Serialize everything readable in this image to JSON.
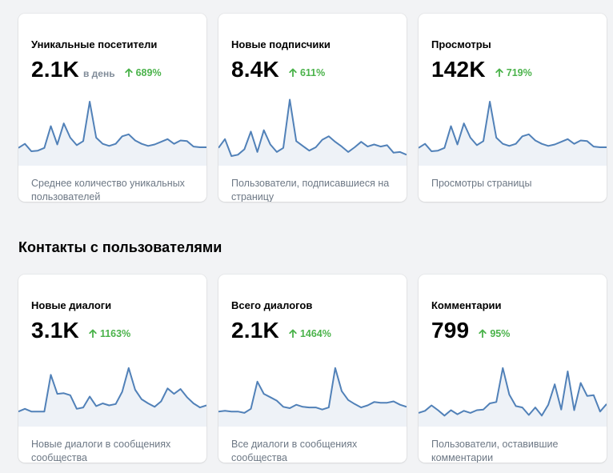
{
  "colors": {
    "line": "#5181b8",
    "area": "#eef2f7",
    "positive": "#4bb34b",
    "muted": "#818c99"
  },
  "section": {
    "title": "Контакты с пользователями"
  },
  "cards": [
    {
      "title": "Уникальные посетители",
      "value": "2.1K",
      "unit": "в день",
      "delta": "689%",
      "desc": "Среднее количество уникальных пользователей",
      "series": [
        12,
        18,
        7,
        8,
        12,
        44,
        17,
        48,
        27,
        16,
        22,
        80,
        27,
        18,
        15,
        18,
        29,
        32,
        23,
        18,
        15,
        17,
        21,
        25,
        18,
        23,
        22,
        14,
        13,
        13
      ]
    },
    {
      "title": "Новые подписчики",
      "value": "8.4K",
      "unit": "",
      "delta": "611%",
      "desc": "Пользователи, подписавшиеся на страницу",
      "series": [
        12,
        25,
        0,
        2,
        10,
        36,
        6,
        38,
        17,
        6,
        12,
        83,
        22,
        15,
        8,
        13,
        24,
        29,
        21,
        14,
        6,
        13,
        21,
        14,
        17,
        14,
        16,
        5,
        6,
        2
      ]
    },
    {
      "title": "Просмотры",
      "value": "142K",
      "unit": "",
      "delta": "719%",
      "desc": "Просмотры страницы",
      "series": [
        12,
        18,
        7,
        8,
        12,
        44,
        17,
        48,
        27,
        16,
        22,
        80,
        27,
        18,
        15,
        18,
        29,
        32,
        23,
        18,
        15,
        17,
        21,
        25,
        18,
        23,
        22,
        14,
        13,
        13
      ]
    },
    {
      "title": "Новые диалоги",
      "value": "3.1K",
      "unit": "",
      "delta": "1163%",
      "desc": "Новые диалоги в сообщениях сообщества",
      "series": [
        8,
        12,
        8,
        8,
        8,
        62,
        34,
        35,
        32,
        12,
        14,
        30,
        16,
        20,
        17,
        19,
        37,
        72,
        40,
        26,
        20,
        15,
        23,
        42,
        34,
        41,
        29,
        20,
        14,
        17
      ]
    },
    {
      "title": "Всего диалогов",
      "value": "2.1K",
      "unit": "",
      "delta": "1464%",
      "desc": "Все диалоги в сообщениях сообщества",
      "series": [
        8,
        9,
        8,
        8,
        6,
        12,
        52,
        34,
        29,
        24,
        15,
        13,
        18,
        15,
        14,
        14,
        11,
        14,
        72,
        38,
        25,
        19,
        14,
        17,
        22,
        21,
        21,
        23,
        18,
        15
      ]
    },
    {
      "title": "Комментарии",
      "value": "799",
      "unit": "",
      "delta": "95%",
      "desc": "Пользователи, оставившие комментарии",
      "series": [
        6,
        9,
        17,
        10,
        2,
        10,
        4,
        9,
        6,
        10,
        11,
        20,
        22,
        72,
        33,
        16,
        14,
        3,
        14,
        2,
        18,
        48,
        11,
        67,
        10,
        50,
        31,
        32,
        8,
        19
      ]
    }
  ]
}
